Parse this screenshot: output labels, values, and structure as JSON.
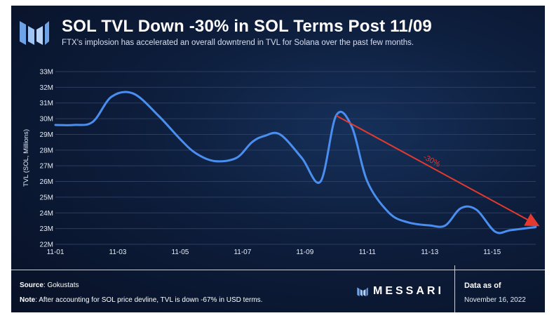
{
  "header": {
    "title": "SOL TVL Down -30% in SOL Terms Post 11/09",
    "subtitle": "FTX's implosion has accelerated an overall downtrend in TVL for Solana over the past few months."
  },
  "colors": {
    "background": "#0d1d3b",
    "line": "#4a8ef0",
    "trend_arrow": "#e23a2e",
    "text": "#ffffff"
  },
  "chart_data": {
    "type": "line",
    "title": "SOL TVL Down -30% in SOL Terms Post 11/09",
    "subtitle": "FTX's implosion has accelerated an overall downtrend in TVL for Solana over the past few months.",
    "xlabel": "",
    "ylabel": "TVL (SOL, Millions)",
    "x_ticks": [
      "11-01",
      "11-03",
      "11-05",
      "11-07",
      "11-09",
      "11-11",
      "11-13",
      "11-15"
    ],
    "y_ticks": [
      "22M",
      "23M",
      "24M",
      "25M",
      "26M",
      "27M",
      "28M",
      "29M",
      "30M",
      "31M",
      "32M",
      "33M"
    ],
    "ylim": [
      22,
      33
    ],
    "xlim": [
      1,
      16.4
    ],
    "grid": "horizontal",
    "legend": "none",
    "series": [
      {
        "x": [
          1,
          1.6,
          2.2,
          2.8,
          3.5,
          4.3,
          5.0,
          5.5,
          6.1,
          6.8,
          7.3,
          7.7,
          8.2,
          8.9,
          9.5,
          10.0,
          10.5,
          11.0,
          11.7,
          12.3,
          13.0,
          13.5,
          14.0,
          14.5,
          15.1,
          15.6,
          16.4
        ],
        "y": [
          29.6,
          29.6,
          29.8,
          31.4,
          31.6,
          30.2,
          28.7,
          27.8,
          27.3,
          27.5,
          28.5,
          28.9,
          29.0,
          27.5,
          26.0,
          30.2,
          29.5,
          26.0,
          24.0,
          23.4,
          23.2,
          23.2,
          24.3,
          24.2,
          22.8,
          22.9,
          23.1
        ]
      }
    ],
    "annotations": [
      {
        "text": "-30%",
        "from": {
          "x": 10.0,
          "y": 30.2
        },
        "to": {
          "x": 16.4,
          "y": 23.1
        }
      }
    ]
  },
  "footer": {
    "source_label": "Source",
    "source_value": ": Gokustats",
    "note_label": "Note",
    "note_value": ": After accounting for SOL price devline, TVL is down -67% in USD terms.",
    "brand": "MESSARI",
    "data_as_of_label": "Data as of",
    "data_as_of_date": "November 16, 2022"
  }
}
